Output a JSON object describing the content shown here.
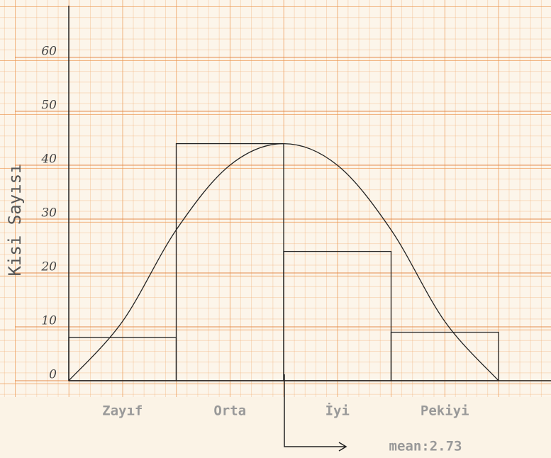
{
  "chart_data": {
    "type": "histogram",
    "y_label": "Kisi Sayısı",
    "bins": [
      0,
      1,
      2,
      3,
      4
    ],
    "categories": [
      "Zayıf",
      "Orta",
      "İyi",
      "Pekiyi"
    ],
    "values": [
      8,
      44,
      24,
      9
    ],
    "curve": {
      "x": [
        0,
        0.5,
        1,
        1.5,
        2,
        2.5,
        3,
        3.5,
        4
      ],
      "values": [
        0,
        11,
        28,
        40,
        44,
        40,
        28,
        11,
        0
      ]
    },
    "annotation": "mean:2.73",
    "xlim": [
      0,
      4.5
    ],
    "ylim": [
      0,
      70
    ],
    "yticks": [
      0,
      10,
      20,
      30,
      40,
      50,
      60
    ],
    "grid": true
  }
}
